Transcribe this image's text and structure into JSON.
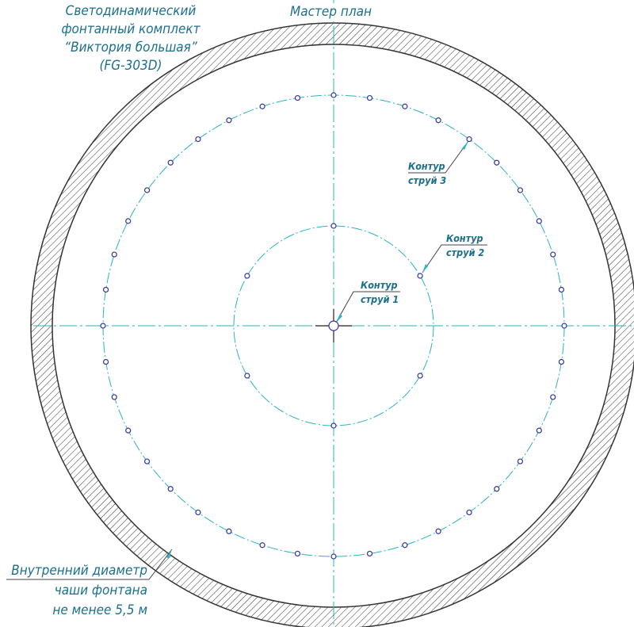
{
  "title_block": {
    "lines": [
      "Светодинамический",
      "фонтанный комплект",
      "“Виктория большая”",
      "(FG-303D)"
    ]
  },
  "header": {
    "title": "Мастер план"
  },
  "labels": {
    "contour1": [
      "Контур",
      "струй 1"
    ],
    "contour2": [
      "Контур",
      "струй 2"
    ],
    "contour3": [
      "Контур",
      "струй 3"
    ]
  },
  "note": {
    "lines": [
      "Внутренний диаметр",
      "чаши фонтана",
      "не менее 5,5 м"
    ]
  },
  "contours": {
    "contour1_nozzles": 1,
    "contour2_nozzles": 6,
    "contour3_nozzles": 40
  },
  "colors": {
    "text": "#1c6f8c",
    "axis": "#2ab3c6",
    "nozzle": "#33339a",
    "hatch": "#333333"
  }
}
